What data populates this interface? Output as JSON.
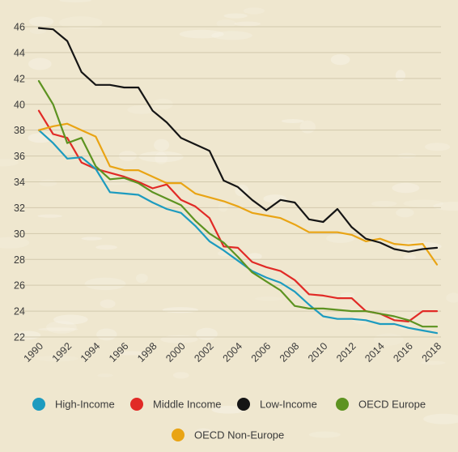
{
  "chart_data": {
    "type": "line",
    "title": "",
    "xlabel": "",
    "ylabel": "",
    "xlim": [
      1990,
      2018
    ],
    "ylim": [
      22,
      46
    ],
    "y_ticks": [
      22,
      24,
      26,
      28,
      30,
      32,
      34,
      36,
      38,
      40,
      42,
      44,
      46
    ],
    "x_tick_labels": [
      "1990",
      "1992",
      "1994",
      "1996",
      "1998",
      "2000",
      "2002",
      "2004",
      "2006",
      "2008",
      "2010",
      "2012",
      "2014",
      "2016",
      "2018"
    ],
    "grid": "horizontal",
    "legend_position": "bottom",
    "x": [
      1990,
      1991,
      1992,
      1993,
      1994,
      1995,
      1996,
      1997,
      1998,
      1999,
      2000,
      2001,
      2002,
      2003,
      2004,
      2005,
      2006,
      2007,
      2008,
      2009,
      2010,
      2011,
      2012,
      2013,
      2014,
      2015,
      2016,
      2017,
      2018
    ],
    "series": [
      {
        "name": "High-Income",
        "color": "#1d9bbf",
        "values": [
          38.0,
          37.0,
          35.8,
          35.9,
          35.0,
          33.2,
          33.1,
          33.0,
          32.4,
          31.9,
          31.6,
          30.6,
          29.4,
          28.7,
          27.9,
          27.1,
          26.6,
          26.2,
          25.5,
          24.5,
          23.6,
          23.4,
          23.4,
          23.3,
          23.0,
          23.0,
          22.7,
          22.5,
          22.3
        ]
      },
      {
        "name": "Middle Income",
        "color": "#e12a26",
        "values": [
          39.5,
          37.7,
          37.4,
          35.5,
          35.0,
          34.7,
          34.4,
          34.0,
          33.5,
          33.8,
          32.6,
          32.1,
          31.2,
          29.0,
          28.9,
          27.8,
          27.4,
          27.1,
          26.4,
          25.3,
          25.2,
          25.0,
          25.0,
          24.0,
          23.8,
          23.3,
          23.2,
          24.0,
          24.0
        ]
      },
      {
        "name": "Low-Income",
        "color": "#151515",
        "values": [
          45.9,
          45.8,
          44.9,
          42.5,
          41.5,
          41.5,
          41.3,
          41.3,
          39.5,
          38.6,
          37.4,
          36.9,
          36.4,
          34.1,
          33.6,
          32.6,
          31.8,
          32.6,
          32.4,
          31.1,
          30.9,
          31.9,
          30.5,
          29.6,
          29.3,
          28.8,
          28.6,
          28.8,
          28.9
        ]
      },
      {
        "name": "OECD Europe",
        "color": "#5d9321",
        "values": [
          41.8,
          40.0,
          37.0,
          37.4,
          35.2,
          34.2,
          34.3,
          33.9,
          33.2,
          32.7,
          32.2,
          31.0,
          30.0,
          29.3,
          28.2,
          27.0,
          26.3,
          25.6,
          24.4,
          24.2,
          24.2,
          24.1,
          24.0,
          24.0,
          23.8,
          23.6,
          23.3,
          22.8,
          22.8
        ]
      },
      {
        "name": "OECD Non-Europe",
        "color": "#e9a414",
        "values": [
          38.0,
          38.3,
          38.5,
          38.0,
          37.5,
          35.2,
          34.9,
          34.9,
          34.4,
          33.9,
          33.9,
          33.1,
          32.8,
          32.5,
          32.1,
          31.6,
          31.4,
          31.2,
          30.7,
          30.1,
          30.1,
          30.1,
          29.9,
          29.4,
          29.6,
          29.2,
          29.1,
          29.2,
          27.6
        ]
      }
    ]
  }
}
